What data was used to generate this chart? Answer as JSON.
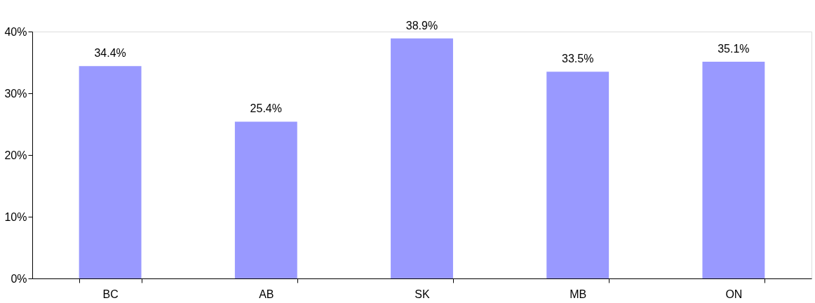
{
  "chart_data": {
    "type": "bar",
    "categories": [
      "BC",
      "AB",
      "SK",
      "MB",
      "ON"
    ],
    "values": [
      34.4,
      25.4,
      38.9,
      33.5,
      35.1
    ],
    "value_labels": [
      "34.4%",
      "25.4%",
      "38.9%",
      "33.5%",
      "35.1%"
    ],
    "color": "#9999ff",
    "ylim": [
      0,
      40
    ],
    "yticks": [
      {
        "value": 0,
        "label": "0%"
      },
      {
        "value": 10,
        "label": "10%"
      },
      {
        "value": 20,
        "label": "20%"
      },
      {
        "value": 30,
        "label": "30%"
      },
      {
        "value": 40,
        "label": "40%"
      }
    ],
    "grid": false
  }
}
